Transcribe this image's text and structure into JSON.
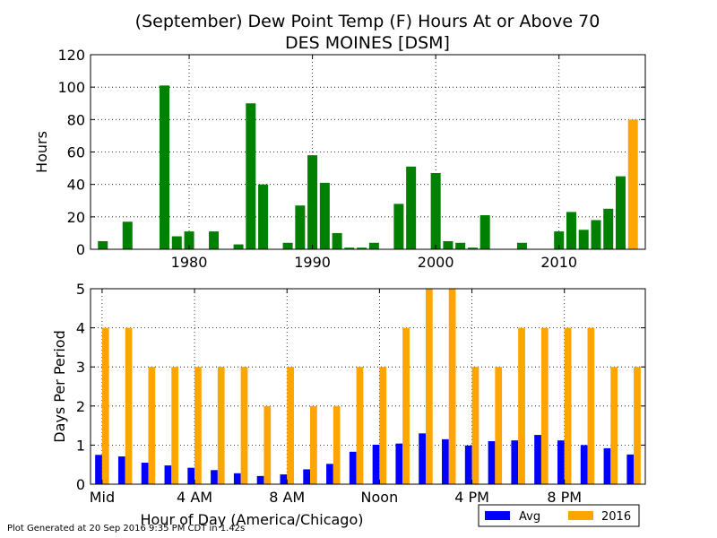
{
  "title_line1": "(September) Dew Point Temp (F) Hours At or Above 70",
  "title_line2": "DES MOINES [DSM]",
  "footer": "Plot Generated at 20 Sep 2016 9:35 PM CDT in 1.42s",
  "colors": {
    "history": "#008000",
    "current": "#FFA500",
    "avg": "#0000FF",
    "year2016": "#FFA500"
  },
  "chart_data": [
    {
      "type": "bar",
      "ylabel": "Hours",
      "xlim": [
        1972,
        2017
      ],
      "ylim": [
        0,
        120
      ],
      "x_ticks": [
        1980,
        1990,
        2000,
        2010
      ],
      "y_ticks": [
        0,
        20,
        40,
        60,
        80,
        100,
        120
      ],
      "grid": true,
      "x": [
        1973,
        1974,
        1975,
        1976,
        1977,
        1978,
        1979,
        1980,
        1981,
        1982,
        1983,
        1984,
        1985,
        1986,
        1987,
        1988,
        1989,
        1990,
        1991,
        1992,
        1993,
        1994,
        1995,
        1996,
        1997,
        1998,
        1999,
        2000,
        2001,
        2002,
        2003,
        2004,
        2005,
        2006,
        2007,
        2008,
        2009,
        2010,
        2011,
        2012,
        2013,
        2014,
        2015,
        2016
      ],
      "values": [
        5,
        0,
        17,
        0,
        0,
        101,
        8,
        11,
        0,
        11,
        0,
        3,
        90,
        40,
        0,
        4,
        27,
        58,
        41,
        10,
        1,
        1,
        4,
        0,
        28,
        51,
        0,
        47,
        5,
        4,
        1,
        21,
        0,
        0,
        4,
        0,
        0,
        11,
        23,
        12,
        18,
        25,
        45,
        80
      ],
      "highlight": {
        "x": 2016,
        "value": 80
      }
    },
    {
      "type": "bar",
      "ylabel": "Days Per Period",
      "xlabel": "Hour of Day (America/Chicago)",
      "ylim": [
        0,
        5
      ],
      "y_ticks": [
        0,
        1,
        2,
        3,
        4,
        5
      ],
      "grid": true,
      "x_tick_labels": [
        {
          "hour": 0,
          "label": "Mid"
        },
        {
          "hour": 4,
          "label": "4 AM"
        },
        {
          "hour": 8,
          "label": "8 AM"
        },
        {
          "hour": 12,
          "label": "Noon"
        },
        {
          "hour": 16,
          "label": "4 PM"
        },
        {
          "hour": 20,
          "label": "8 PM"
        }
      ],
      "hours": [
        0,
        1,
        2,
        3,
        4,
        5,
        6,
        7,
        8,
        9,
        10,
        11,
        12,
        13,
        14,
        15,
        16,
        17,
        18,
        19,
        20,
        21,
        22,
        23
      ],
      "legend": {
        "position": "bottom-right",
        "entries": [
          "Avg",
          "2016"
        ]
      },
      "series": [
        {
          "name": "Avg",
          "values": [
            0.75,
            0.71,
            0.55,
            0.48,
            0.42,
            0.36,
            0.28,
            0.21,
            0.25,
            0.38,
            0.52,
            0.83,
            1.01,
            1.04,
            1.3,
            1.15,
            0.99,
            1.1,
            1.12,
            1.26,
            1.12,
            1.0,
            0.92,
            0.76
          ]
        },
        {
          "name": "2016",
          "values": [
            4,
            4,
            3,
            3,
            3,
            3,
            3,
            2,
            3,
            2,
            2,
            3,
            3,
            4,
            5,
            5,
            3,
            3,
            4,
            4,
            4,
            4,
            3,
            3
          ]
        }
      ]
    }
  ]
}
